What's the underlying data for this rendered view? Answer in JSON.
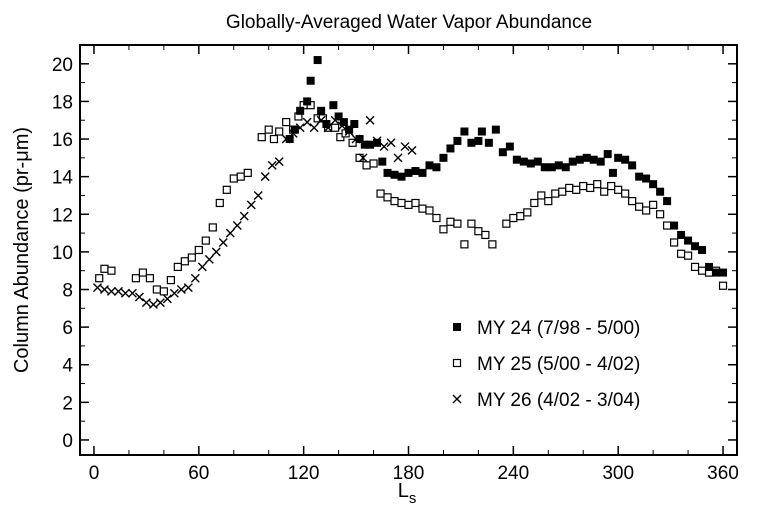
{
  "chart_data": {
    "type": "scatter",
    "title": "Globally-Averaged Water Vapor Abundance",
    "xlabel_main": "L",
    "xlabel_sub": "s",
    "ylabel": "Column Abundance (pr-μm)",
    "xlim": [
      -8,
      368
    ],
    "ylim": [
      -0.8,
      21
    ],
    "xticks": [
      0,
      60,
      120,
      180,
      240,
      300,
      360
    ],
    "yticks": [
      0,
      2,
      4,
      6,
      8,
      10,
      12,
      14,
      16,
      18,
      20
    ],
    "legend_position": "bottom-right",
    "series": [
      {
        "name": "MY 24 (7/98 - 5/00)",
        "marker": "filled-square",
        "points": [
          [
            112,
            16.0
          ],
          [
            115,
            16.5
          ],
          [
            118,
            17.5
          ],
          [
            122,
            18.0
          ],
          [
            124,
            19.1
          ],
          [
            128,
            20.2
          ],
          [
            130,
            17.5
          ],
          [
            133,
            16.8
          ],
          [
            137,
            17.8
          ],
          [
            140,
            17.2
          ],
          [
            143,
            16.9
          ],
          [
            146,
            16.5
          ],
          [
            149,
            16.8
          ],
          [
            152,
            16.0
          ],
          [
            155,
            15.7
          ],
          [
            158,
            15.7
          ],
          [
            162,
            15.8
          ],
          [
            165,
            14.8
          ],
          [
            168,
            14.2
          ],
          [
            172,
            14.1
          ],
          [
            176,
            14.0
          ],
          [
            180,
            14.2
          ],
          [
            184,
            14.3
          ],
          [
            188,
            14.2
          ],
          [
            192,
            14.6
          ],
          [
            196,
            14.5
          ],
          [
            200,
            15.0
          ],
          [
            204,
            15.5
          ],
          [
            208,
            15.9
          ],
          [
            212,
            16.4
          ],
          [
            216,
            15.8
          ],
          [
            220,
            15.9
          ],
          [
            222,
            16.4
          ],
          [
            226,
            15.8
          ],
          [
            230,
            16.5
          ],
          [
            234,
            15.3
          ],
          [
            238,
            15.6
          ],
          [
            242,
            14.9
          ],
          [
            246,
            14.8
          ],
          [
            250,
            14.7
          ],
          [
            254,
            14.8
          ],
          [
            258,
            14.5
          ],
          [
            262,
            14.5
          ],
          [
            266,
            14.6
          ],
          [
            270,
            14.5
          ],
          [
            274,
            14.8
          ],
          [
            278,
            14.9
          ],
          [
            282,
            15.0
          ],
          [
            286,
            14.9
          ],
          [
            290,
            14.8
          ],
          [
            294,
            15.2
          ],
          [
            297,
            14.2
          ],
          [
            300,
            15.0
          ],
          [
            304,
            14.9
          ],
          [
            308,
            14.6
          ],
          [
            312,
            14.0
          ],
          [
            316,
            13.9
          ],
          [
            320,
            13.6
          ],
          [
            324,
            13.2
          ],
          [
            328,
            12.7
          ],
          [
            332,
            11.4
          ],
          [
            336,
            10.9
          ],
          [
            340,
            10.6
          ],
          [
            344,
            10.3
          ],
          [
            348,
            10.1
          ],
          [
            352,
            9.2
          ],
          [
            356,
            8.9
          ],
          [
            360,
            8.9
          ]
        ]
      },
      {
        "name": "MY 25 (5/00 - 4/02)",
        "marker": "open-square",
        "points": [
          [
            3,
            8.6
          ],
          [
            6,
            9.1
          ],
          [
            10,
            9.0
          ],
          [
            24,
            8.6
          ],
          [
            28,
            8.9
          ],
          [
            32,
            8.6
          ],
          [
            36,
            8.0
          ],
          [
            40,
            7.9
          ],
          [
            44,
            8.5
          ],
          [
            48,
            9.2
          ],
          [
            52,
            9.5
          ],
          [
            56,
            9.7
          ],
          [
            60,
            10.1
          ],
          [
            64,
            10.6
          ],
          [
            68,
            11.3
          ],
          [
            72,
            12.6
          ],
          [
            76,
            13.3
          ],
          [
            80,
            13.9
          ],
          [
            84,
            14.0
          ],
          [
            88,
            14.2
          ],
          [
            96,
            16.1
          ],
          [
            100,
            16.5
          ],
          [
            103,
            16.0
          ],
          [
            106,
            16.4
          ],
          [
            110,
            16.9
          ],
          [
            114,
            16.5
          ],
          [
            117,
            17.2
          ],
          [
            120,
            17.8
          ],
          [
            124,
            17.8
          ],
          [
            128,
            17.1
          ],
          [
            131,
            17.1
          ],
          [
            134,
            16.6
          ],
          [
            138,
            16.6
          ],
          [
            141,
            16.1
          ],
          [
            144,
            16.3
          ],
          [
            148,
            15.8
          ],
          [
            152,
            15.0
          ],
          [
            156,
            14.6
          ],
          [
            160,
            14.7
          ],
          [
            164,
            13.1
          ],
          [
            168,
            12.9
          ],
          [
            172,
            12.7
          ],
          [
            176,
            12.6
          ],
          [
            180,
            12.5
          ],
          [
            184,
            12.6
          ],
          [
            188,
            12.3
          ],
          [
            192,
            12.2
          ],
          [
            196,
            11.8
          ],
          [
            200,
            11.2
          ],
          [
            204,
            11.6
          ],
          [
            208,
            11.5
          ],
          [
            212,
            10.4
          ],
          [
            216,
            11.5
          ],
          [
            220,
            11.1
          ],
          [
            224,
            10.9
          ],
          [
            228,
            10.4
          ],
          [
            236,
            11.5
          ],
          [
            240,
            11.8
          ],
          [
            244,
            11.9
          ],
          [
            248,
            12.1
          ],
          [
            252,
            12.6
          ],
          [
            256,
            13.0
          ],
          [
            260,
            12.7
          ],
          [
            264,
            13.1
          ],
          [
            268,
            13.2
          ],
          [
            272,
            13.4
          ],
          [
            276,
            13.3
          ],
          [
            280,
            13.5
          ],
          [
            284,
            13.4
          ],
          [
            288,
            13.6
          ],
          [
            292,
            13.2
          ],
          [
            296,
            13.5
          ],
          [
            300,
            13.3
          ],
          [
            304,
            13.1
          ],
          [
            308,
            12.7
          ],
          [
            312,
            12.4
          ],
          [
            316,
            12.2
          ],
          [
            320,
            12.5
          ],
          [
            324,
            12.0
          ],
          [
            328,
            11.4
          ],
          [
            332,
            10.5
          ],
          [
            336,
            9.9
          ],
          [
            340,
            9.8
          ],
          [
            344,
            9.2
          ],
          [
            348,
            9.0
          ],
          [
            352,
            8.9
          ],
          [
            356,
            9.0
          ],
          [
            360,
            8.2
          ]
        ]
      },
      {
        "name": "MY 26 (4/02 - 3/04)",
        "marker": "cross",
        "points": [
          [
            2,
            8.1
          ],
          [
            6,
            8.0
          ],
          [
            10,
            7.9
          ],
          [
            14,
            7.9
          ],
          [
            18,
            7.8
          ],
          [
            22,
            7.8
          ],
          [
            26,
            7.6
          ],
          [
            30,
            7.3
          ],
          [
            34,
            7.2
          ],
          [
            38,
            7.3
          ],
          [
            42,
            7.5
          ],
          [
            46,
            7.8
          ],
          [
            50,
            8.0
          ],
          [
            54,
            8.1
          ],
          [
            58,
            8.6
          ],
          [
            62,
            9.2
          ],
          [
            66,
            9.6
          ],
          [
            70,
            10.0
          ],
          [
            74,
            10.5
          ],
          [
            78,
            11.0
          ],
          [
            82,
            11.4
          ],
          [
            86,
            11.9
          ],
          [
            90,
            12.5
          ],
          [
            94,
            13.0
          ],
          [
            98,
            14.0
          ],
          [
            102,
            14.6
          ],
          [
            106,
            14.8
          ],
          [
            110,
            16.0
          ],
          [
            114,
            16.3
          ],
          [
            118,
            16.6
          ],
          [
            122,
            16.9
          ],
          [
            126,
            16.6
          ],
          [
            130,
            17.0
          ],
          [
            134,
            16.6
          ],
          [
            138,
            17.0
          ],
          [
            142,
            16.7
          ],
          [
            146,
            16.4
          ],
          [
            150,
            16.0
          ],
          [
            154,
            15.0
          ],
          [
            158,
            17.0
          ],
          [
            162,
            15.9
          ],
          [
            166,
            15.6
          ],
          [
            170,
            15.8
          ],
          [
            174,
            15.0
          ],
          [
            178,
            15.6
          ],
          [
            182,
            15.4
          ]
        ]
      }
    ]
  }
}
